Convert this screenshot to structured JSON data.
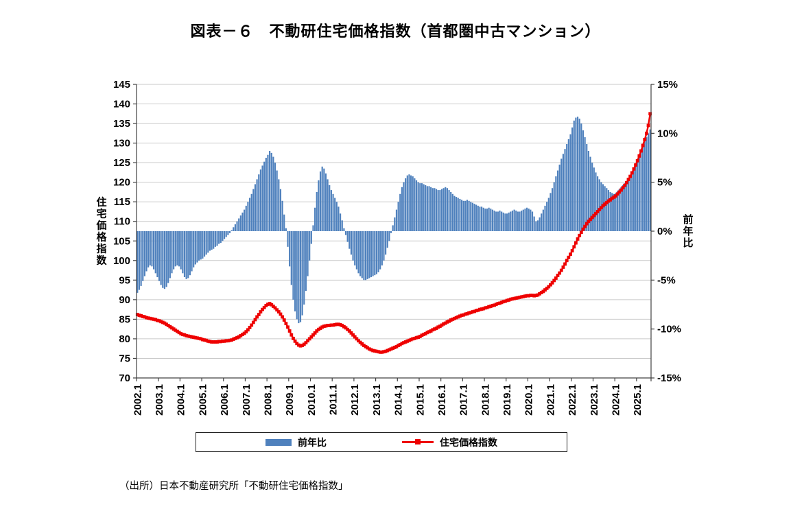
{
  "source_note": "（出所）日本不動産研究所「不動研住宅価格指数」",
  "chart_data": {
    "type": "bar",
    "subtype": "bar+line combo, monthly time series",
    "title": "図表－６　不動研住宅価格指数（首都圏中古マンション）",
    "start_period": "2002.1",
    "frequency": "monthly",
    "grid": "horizontal gridlines at every 5 index points",
    "legend_position": "bottom boxed",
    "x_tick_labels": [
      "2002.1",
      "2003.1",
      "2004.1",
      "2005.1",
      "2006.1",
      "2007.1",
      "2008.1",
      "2009.1",
      "2010.1",
      "2011.1",
      "2012.1",
      "2013.1",
      "2014.1",
      "2015.1",
      "2016.1",
      "2017.1",
      "2018.1",
      "2019.1",
      "2020.1",
      "2021.1",
      "2022.1",
      "2023.1",
      "2024.1",
      "2025.1"
    ],
    "left_axis": {
      "label": "住宅価格指数",
      "min": 70,
      "max": 145,
      "tick_step": 5
    },
    "right_axis": {
      "label": "前年比",
      "min": -15,
      "max": 15,
      "ticks": [
        {
          "value": 15,
          "label": "15%"
        },
        {
          "value": 10,
          "label": "10%"
        },
        {
          "value": 5,
          "label": "5%"
        },
        {
          "value": 0,
          "label": "0%"
        },
        {
          "value": -5,
          "label": "-5%"
        },
        {
          "value": -10,
          "label": "-10%"
        },
        {
          "value": -15,
          "label": "-15%"
        }
      ]
    },
    "colors": {
      "bar": "#4f81bd",
      "line": "#ee0000",
      "grid": "#c9c9c9",
      "axis": "#404040"
    },
    "series": [
      {
        "name": "前年比",
        "type": "bar",
        "axis": "right",
        "unit": "%",
        "values": [
          -6.3,
          -6.0,
          -5.6,
          -5.1,
          -4.6,
          -4.1,
          -3.7,
          -3.5,
          -3.6,
          -3.9,
          -4.3,
          -4.7,
          -5.1,
          -5.5,
          -5.8,
          -5.9,
          -5.7,
          -5.3,
          -4.8,
          -4.3,
          -3.9,
          -3.6,
          -3.5,
          -3.6,
          -3.9,
          -4.3,
          -4.7,
          -4.9,
          -4.8,
          -4.5,
          -4.1,
          -3.7,
          -3.4,
          -3.2,
          -3.0,
          -2.9,
          -2.8,
          -2.6,
          -2.4,
          -2.2,
          -2.0,
          -1.9,
          -1.8,
          -1.6,
          -1.5,
          -1.3,
          -1.2,
          -1.0,
          -0.8,
          -0.6,
          -0.4,
          -0.2,
          0.1,
          0.4,
          0.7,
          1.0,
          1.3,
          1.6,
          1.9,
          2.2,
          2.6,
          3.0,
          3.4,
          3.8,
          4.3,
          4.8,
          5.3,
          5.8,
          6.3,
          6.7,
          7.1,
          7.5,
          7.8,
          8.2,
          8.0,
          7.6,
          7.0,
          6.2,
          5.3,
          4.3,
          3.1,
          1.7,
          0.3,
          -1.6,
          -3.6,
          -5.5,
          -7.0,
          -8.2,
          -9.0,
          -9.4,
          -9.3,
          -8.6,
          -7.5,
          -6.1,
          -4.6,
          -3.0,
          -1.3,
          0.6,
          2.4,
          4.0,
          5.2,
          6.1,
          6.6,
          6.4,
          5.9,
          5.3,
          4.7,
          4.2,
          3.8,
          3.4,
          3.0,
          2.5,
          1.8,
          1.1,
          0.3,
          -0.4,
          -1.1,
          -1.8,
          -2.4,
          -3.0,
          -3.5,
          -3.9,
          -4.3,
          -4.6,
          -4.8,
          -5.0,
          -5.0,
          -4.9,
          -4.8,
          -4.7,
          -4.6,
          -4.5,
          -4.4,
          -4.2,
          -3.9,
          -3.5,
          -3.0,
          -2.4,
          -1.7,
          -1.0,
          -0.2,
          0.6,
          1.4,
          2.2,
          3.0,
          3.8,
          4.5,
          5.0,
          5.4,
          5.7,
          5.8,
          5.7,
          5.6,
          5.4,
          5.2,
          5.0,
          4.9,
          4.9,
          4.8,
          4.7,
          4.6,
          4.6,
          4.5,
          4.4,
          4.4,
          4.3,
          4.2,
          4.2,
          4.3,
          4.4,
          4.5,
          4.4,
          4.2,
          4.0,
          3.8,
          3.6,
          3.5,
          3.4,
          3.3,
          3.2,
          3.1,
          3.1,
          3.2,
          3.1,
          3.0,
          2.9,
          2.8,
          2.7,
          2.6,
          2.5,
          2.5,
          2.4,
          2.3,
          2.3,
          2.4,
          2.3,
          2.2,
          2.1,
          2.0,
          2.0,
          2.1,
          2.0,
          1.9,
          1.8,
          1.8,
          1.9,
          2.0,
          2.1,
          2.2,
          2.1,
          2.0,
          2.0,
          2.1,
          2.2,
          2.3,
          2.4,
          2.3,
          2.2,
          2.0,
          1.5,
          1.0,
          1.1,
          1.4,
          1.8,
          2.2,
          2.6,
          3.0,
          3.4,
          3.9,
          4.4,
          5.0,
          5.6,
          6.2,
          6.8,
          7.4,
          7.9,
          8.4,
          8.9,
          9.4,
          9.9,
          10.6,
          11.3,
          11.6,
          11.7,
          11.5,
          11.0,
          10.3,
          9.6,
          8.9,
          8.2,
          7.6,
          7.0,
          6.5,
          6.0,
          5.6,
          5.3,
          5.0,
          4.8,
          4.6,
          4.4,
          4.2,
          4.0,
          3.9,
          3.8,
          3.9,
          4.1,
          4.3,
          4.5,
          4.7,
          4.9,
          5.1,
          5.4,
          5.7,
          6.0,
          6.4,
          6.8,
          7.2,
          7.7,
          8.2,
          8.7,
          9.2,
          9.6,
          10.0,
          10.4
        ]
      },
      {
        "name": "住宅価格指数",
        "type": "line",
        "axis": "left",
        "marker": "square",
        "values": [
          86.2,
          86.0,
          85.9,
          85.7,
          85.6,
          85.4,
          85.3,
          85.2,
          85.1,
          85.0,
          84.9,
          84.7,
          84.6,
          84.4,
          84.2,
          84.0,
          83.7,
          83.4,
          83.1,
          82.8,
          82.5,
          82.2,
          81.9,
          81.6,
          81.3,
          81.1,
          81.0,
          80.8,
          80.7,
          80.6,
          80.5,
          80.4,
          80.3,
          80.2,
          80.1,
          80.0,
          79.8,
          79.7,
          79.6,
          79.4,
          79.3,
          79.2,
          79.2,
          79.2,
          79.2,
          79.3,
          79.3,
          79.4,
          79.4,
          79.5,
          79.5,
          79.6,
          79.7,
          79.9,
          80.1,
          80.3,
          80.5,
          80.8,
          81.1,
          81.4,
          81.8,
          82.3,
          82.9,
          83.5,
          84.2,
          84.9,
          85.6,
          86.2,
          86.9,
          87.5,
          88.0,
          88.5,
          88.8,
          89.0,
          88.7,
          88.3,
          87.9,
          87.4,
          86.9,
          86.3,
          85.6,
          84.8,
          83.9,
          83.0,
          82.0,
          81.0,
          80.1,
          79.4,
          78.8,
          78.4,
          78.2,
          78.3,
          78.6,
          79.0,
          79.5,
          80.0,
          80.5,
          81.0,
          81.5,
          82.0,
          82.4,
          82.7,
          83.0,
          83.2,
          83.3,
          83.4,
          83.4,
          83.5,
          83.5,
          83.6,
          83.7,
          83.7,
          83.6,
          83.4,
          83.1,
          82.8,
          82.4,
          82.0,
          81.5,
          81.0,
          80.5,
          80.0,
          79.5,
          79.1,
          78.7,
          78.3,
          78.0,
          77.7,
          77.4,
          77.2,
          77.0,
          76.9,
          76.8,
          76.7,
          76.6,
          76.6,
          76.7,
          76.8,
          77.0,
          77.2,
          77.4,
          77.6,
          77.8,
          78.0,
          78.3,
          78.5,
          78.8,
          79.0,
          79.2,
          79.4,
          79.6,
          79.8,
          80.0,
          80.1,
          80.3,
          80.4,
          80.6,
          80.9,
          81.1,
          81.3,
          81.6,
          81.8,
          82.0,
          82.3,
          82.5,
          82.7,
          83.0,
          83.2,
          83.5,
          83.8,
          84.0,
          84.3,
          84.5,
          84.8,
          85.0,
          85.2,
          85.4,
          85.6,
          85.8,
          86.0,
          86.1,
          86.3,
          86.4,
          86.6,
          86.7,
          86.9,
          87.0,
          87.2,
          87.3,
          87.5,
          87.6,
          87.7,
          87.9,
          88.0,
          88.2,
          88.3,
          88.5,
          88.6,
          88.8,
          89.0,
          89.1,
          89.3,
          89.5,
          89.6,
          89.8,
          89.9,
          90.1,
          90.2,
          90.3,
          90.4,
          90.5,
          90.6,
          90.7,
          90.8,
          90.9,
          91.0,
          91.0,
          91.1,
          91.1,
          91.0,
          91.1,
          91.2,
          91.5,
          91.8,
          92.1,
          92.5,
          92.9,
          93.3,
          93.8,
          94.3,
          94.9,
          95.5,
          96.2,
          96.8,
          97.5,
          98.3,
          99.1,
          100.0,
          100.8,
          101.6,
          102.5,
          103.5,
          104.5,
          105.5,
          106.4,
          107.2,
          108.0,
          108.7,
          109.4,
          110.0,
          110.5,
          111.0,
          111.5,
          112.0,
          112.5,
          113.0,
          113.5,
          114.0,
          114.4,
          114.8,
          115.2,
          115.5,
          115.9,
          116.2,
          116.5,
          117.0,
          117.5,
          118.0,
          118.6,
          119.2,
          119.9,
          120.7,
          121.5,
          122.4,
          123.4,
          124.4,
          125.5,
          126.7,
          128.0,
          129.4,
          130.9,
          132.5,
          134.5,
          137.5
        ]
      }
    ]
  }
}
